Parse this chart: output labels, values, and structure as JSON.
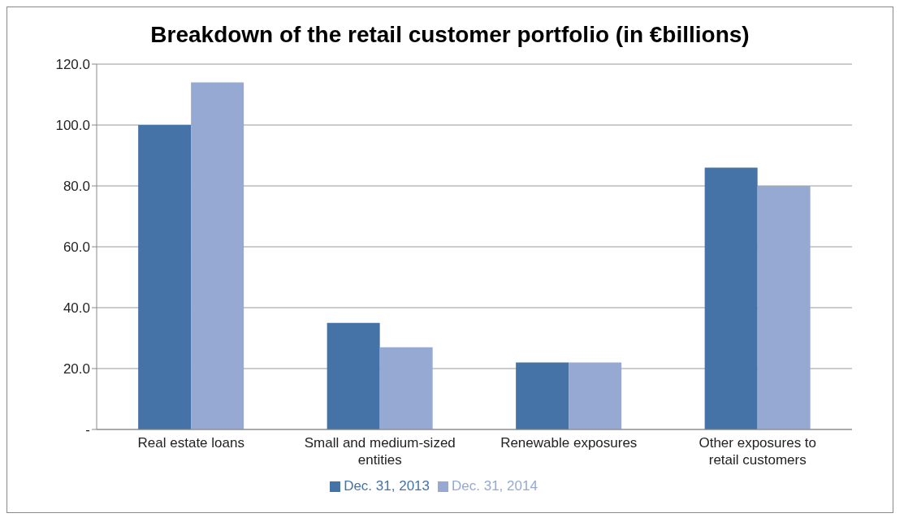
{
  "chart_data": {
    "type": "bar",
    "title": "Breakdown of the retail customer portfolio (in €billions)",
    "categories": [
      "Real estate loans",
      "Small and medium-sized entities",
      "Renewable exposures",
      "Other exposures to retail customers"
    ],
    "series": [
      {
        "name": "Dec. 31, 2013",
        "color": "#4572a7",
        "values": [
          100,
          35,
          22,
          86
        ]
      },
      {
        "name": "Dec. 31, 2014",
        "color": "#95a9d2",
        "values": [
          114,
          27,
          22,
          80
        ]
      }
    ],
    "ylim": [
      0,
      120
    ],
    "yticks": [
      {
        "value": 0,
        "label": "-"
      },
      {
        "value": 20,
        "label": "20.0"
      },
      {
        "value": 40,
        "label": "40.0"
      },
      {
        "value": 60,
        "label": "60.0"
      },
      {
        "value": 80,
        "label": "80.0"
      },
      {
        "value": 100,
        "label": "100.0"
      },
      {
        "value": 120,
        "label": "120.0"
      }
    ],
    "grid": "y",
    "legend": "bottom"
  }
}
